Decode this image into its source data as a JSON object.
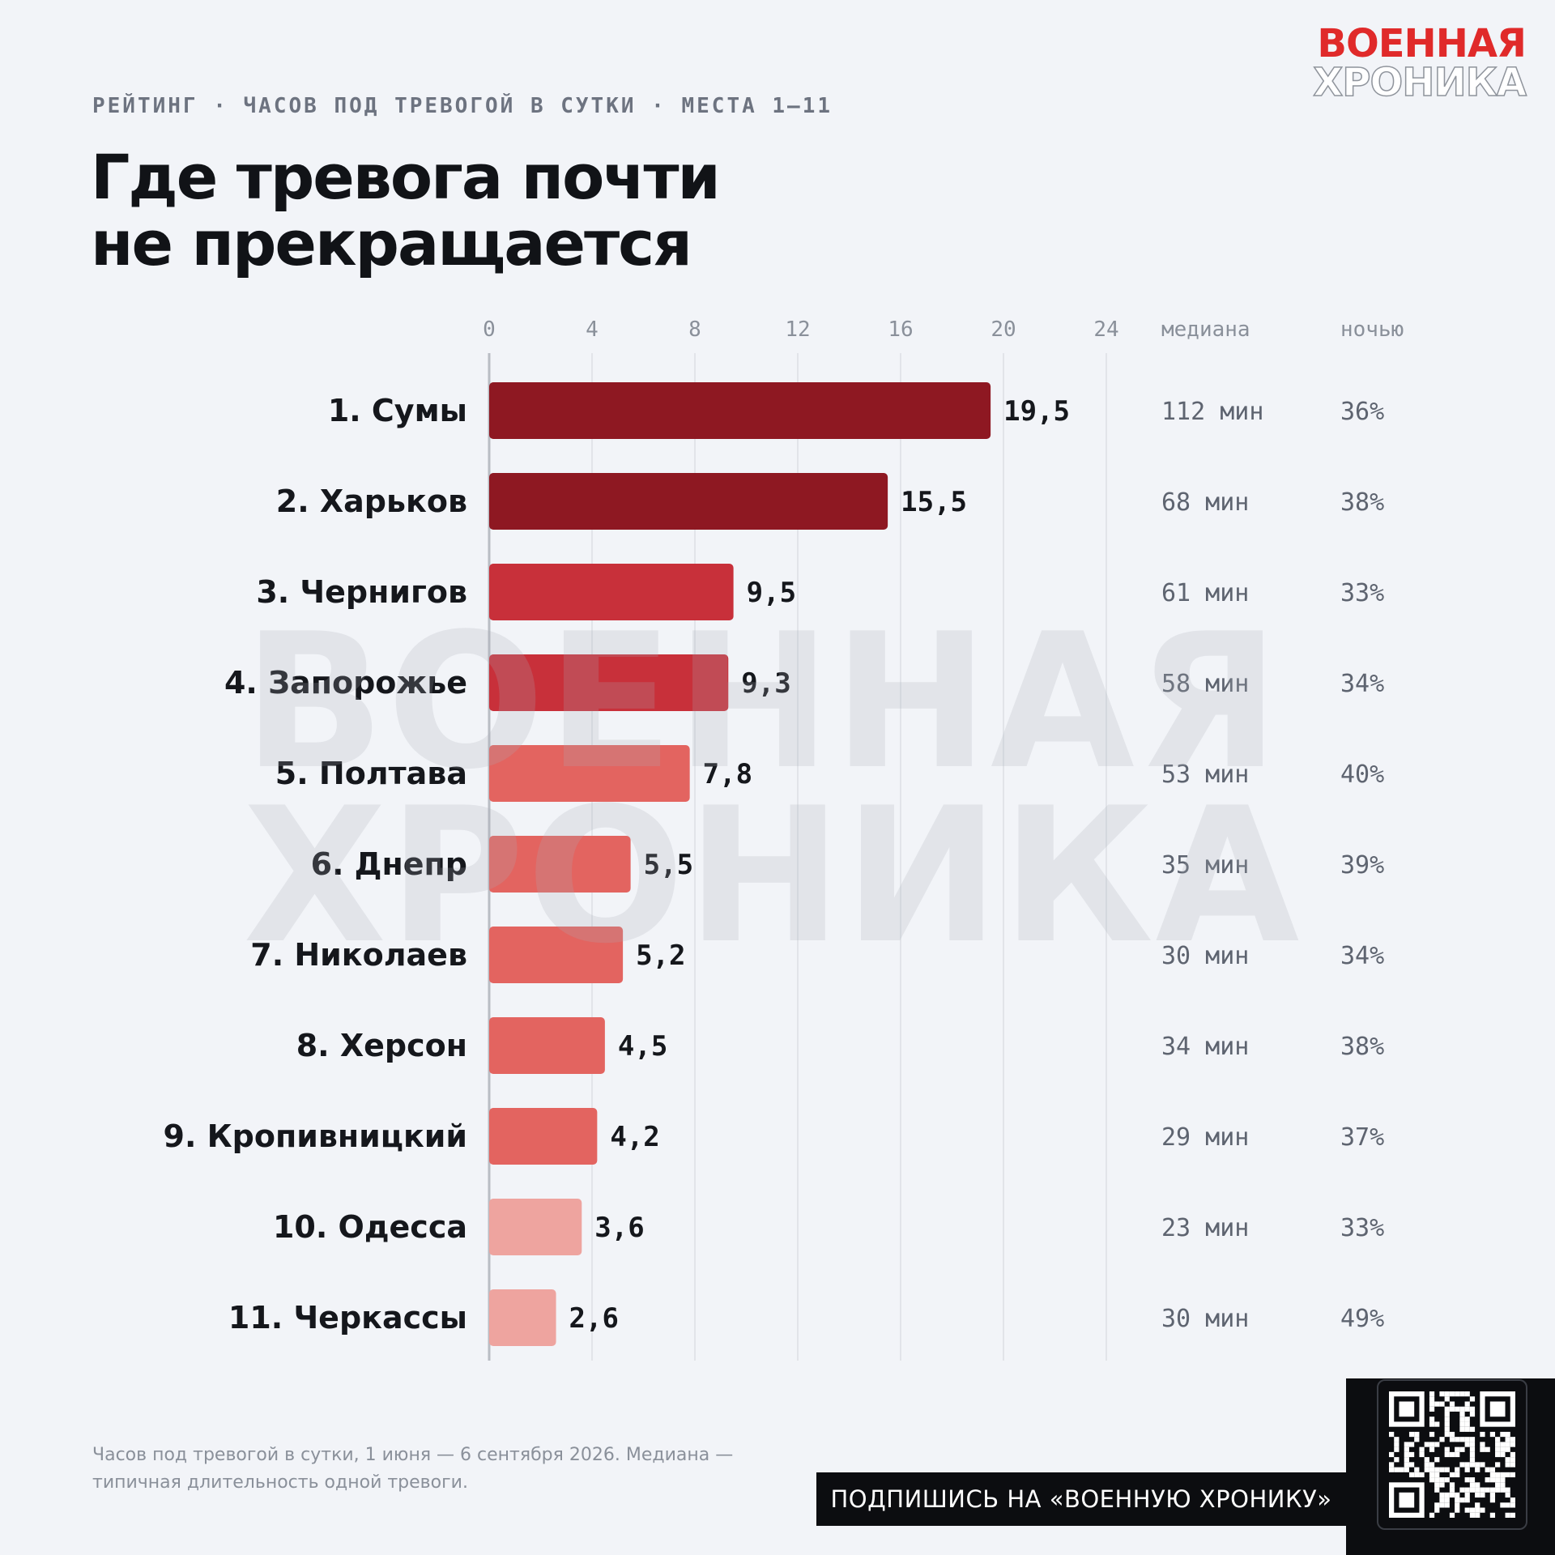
{
  "header": {
    "kicker": "РЕЙТИНГ · ЧАСОВ ПОД ТРЕВОГОЙ В СУТКИ · МЕСТА 1–11",
    "title_line1": "Где тревога почти",
    "title_line2": "не прекращается"
  },
  "brand": {
    "line1": "ВОЕННАЯ",
    "line2": "ХРОНИКА"
  },
  "watermark": {
    "line1": "ВОЕННАЯ",
    "line2": "ХРОНИКА"
  },
  "chart_data": {
    "type": "bar",
    "orientation": "horizontal",
    "categories": [
      "1. Сумы",
      "2. Харьков",
      "3. Чернигов",
      "4. Запорожье",
      "5. Полтава",
      "6. Днепр",
      "7. Николаев",
      "8. Херсон",
      "9. Кропивницкий",
      "10. Одесса",
      "11. Черкассы"
    ],
    "values": [
      19.5,
      15.5,
      9.5,
      9.3,
      7.8,
      5.5,
      5.2,
      4.5,
      4.2,
      3.6,
      2.6
    ],
    "value_labels": [
      "19,5",
      "15,5",
      "9,5",
      "9,3",
      "7,8",
      "5,5",
      "5,2",
      "4,5",
      "4,2",
      "3,6",
      "2,6"
    ],
    "bar_colors": [
      "#8e1822",
      "#8e1822",
      "#c8303a",
      "#c8303a",
      "#e36460",
      "#e36460",
      "#e36460",
      "#e36460",
      "#e36460",
      "#eea49f",
      "#eea49f"
    ],
    "xlim": [
      0,
      24
    ],
    "xticks": [
      0,
      4,
      8,
      12,
      16,
      20,
      24
    ],
    "grid": true,
    "columns": {
      "median_header": "медиана",
      "night_header": "ночью",
      "median": [
        "112 мин",
        "68 мин",
        "61 мин",
        "58 мин",
        "53 мин",
        "35 мин",
        "30 мин",
        "34 мин",
        "29 мин",
        "23 мин",
        "30 мин"
      ],
      "night": [
        "36%",
        "38%",
        "33%",
        "34%",
        "40%",
        "39%",
        "34%",
        "38%",
        "37%",
        "33%",
        "49%"
      ]
    }
  },
  "footer": {
    "note": "Часов под тревогой в сутки, 1 июня — 6 сентября 2026. Медиана — типичная длительность одной тревоги.",
    "subscribe": "ПОДПИШИСЬ НА «ВОЕННУЮ ХРОНИКУ»"
  }
}
